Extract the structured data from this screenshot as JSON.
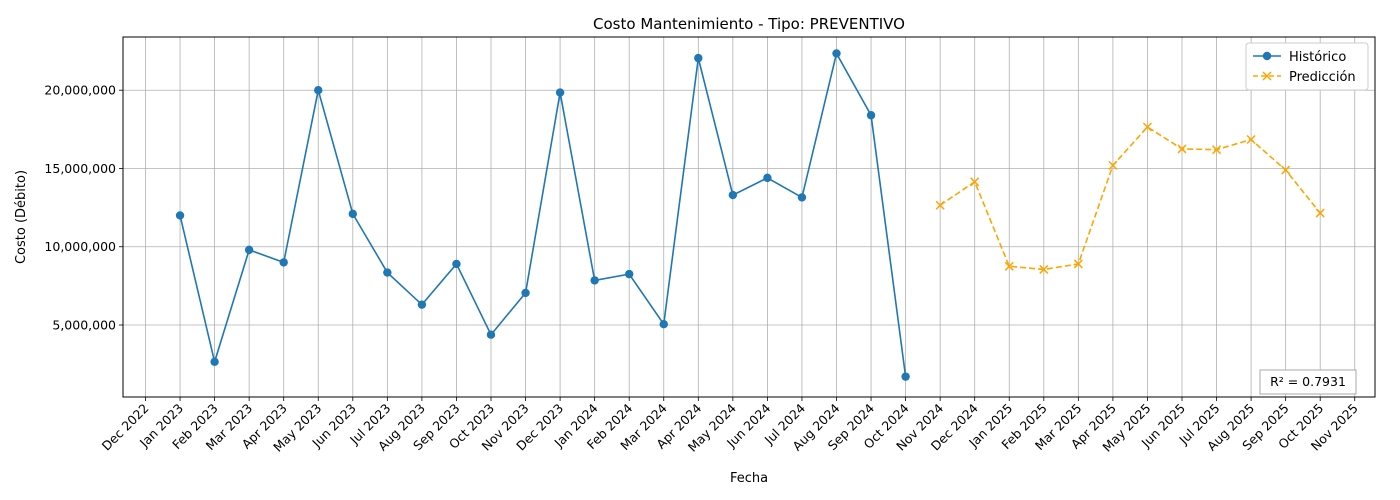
{
  "chart_data": {
    "type": "line",
    "title": "Costo Mantenimiento - Tipo: PREVENTIVO",
    "xlabel": "Fecha",
    "ylabel": "Costo (Débito)",
    "x_ticks": [
      "Dec 2022",
      "Jan 2023",
      "Feb 2023",
      "Mar 2023",
      "Apr 2023",
      "May 2023",
      "Jun 2023",
      "Jul 2023",
      "Aug 2023",
      "Sep 2023",
      "Oct 2023",
      "Nov 2023",
      "Dec 2023",
      "Jan 2024",
      "Feb 2024",
      "Mar 2024",
      "Apr 2024",
      "May 2024",
      "Jun 2024",
      "Jul 2024",
      "Aug 2024",
      "Sep 2024",
      "Oct 2024",
      "Nov 2024",
      "Dec 2024",
      "Jan 2025",
      "Feb 2025",
      "Mar 2025",
      "Apr 2025",
      "May 2025",
      "Jun 2025",
      "Jul 2025",
      "Aug 2025",
      "Sep 2025",
      "Oct 2025",
      "Nov 2025"
    ],
    "y_ticks": [
      5000000,
      10000000,
      15000000,
      20000000
    ],
    "y_tick_labels": [
      "5,000,000",
      "10,000,000",
      "15,000,000",
      "20,000,000"
    ],
    "ylim": [
      400000,
      23400000
    ],
    "grid": true,
    "legend_position": "top-right",
    "annotation": "R² = 0.7931",
    "series": [
      {
        "name": "Histórico",
        "color": "#1f77b4",
        "marker": "circle",
        "line_style": "solid",
        "x": [
          "Jan 2023",
          "Feb 2023",
          "Mar 2023",
          "Apr 2023",
          "May 2023",
          "Jun 2023",
          "Jul 2023",
          "Aug 2023",
          "Sep 2023",
          "Oct 2023",
          "Nov 2023",
          "Dec 2023",
          "Jan 2024",
          "Feb 2024",
          "Mar 2024",
          "Apr 2024",
          "May 2024",
          "Jun 2024",
          "Jul 2024",
          "Aug 2024",
          "Sep 2024",
          "Oct 2024"
        ],
        "values": [
          12000000,
          2650000,
          9800000,
          9000000,
          20000000,
          12100000,
          8350000,
          6300000,
          8900000,
          4380000,
          7050000,
          19850000,
          7850000,
          8250000,
          5050000,
          22050000,
          13300000,
          14400000,
          13150000,
          22350000,
          18400000,
          1700000
        ]
      },
      {
        "name": "Predicción",
        "color": "#ffa500",
        "marker": "x",
        "line_style": "dashed",
        "x": [
          "Nov 2024",
          "Dec 2024",
          "Jan 2025",
          "Feb 2025",
          "Mar 2025",
          "Apr 2025",
          "May 2025",
          "Jun 2025",
          "Jul 2025",
          "Aug 2025",
          "Sep 2025",
          "Oct 2025"
        ],
        "values": [
          12650000,
          14150000,
          8750000,
          8550000,
          8900000,
          15200000,
          17650000,
          16250000,
          16200000,
          16850000,
          14900000,
          12150000
        ]
      }
    ]
  }
}
